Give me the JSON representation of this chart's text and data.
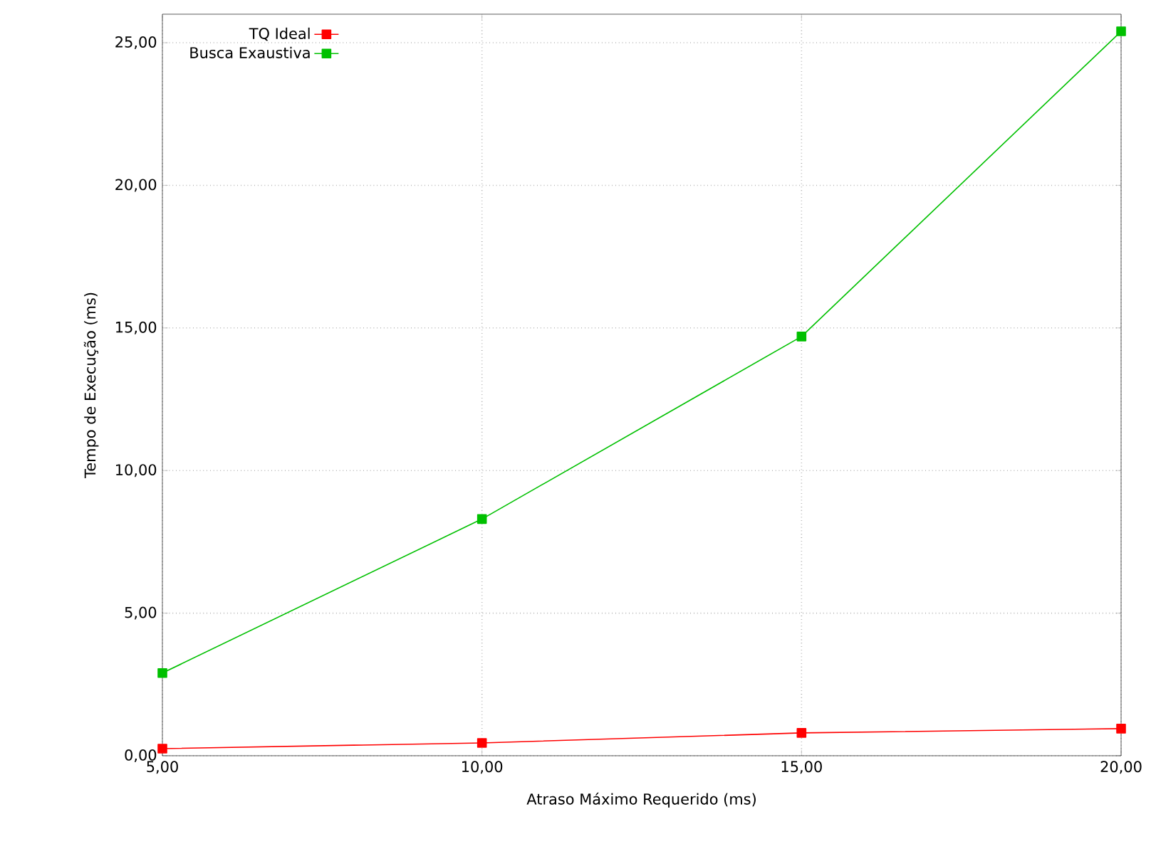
{
  "chart_data": {
    "type": "line",
    "xlabel": "Atraso Máximo Requerido (ms)",
    "ylabel": "Tempo de Execução (ms)",
    "x": [
      5,
      10,
      15,
      20
    ],
    "series": [
      {
        "name": "TQ Ideal",
        "color": "#ff0000",
        "values": [
          0.25,
          0.45,
          0.8,
          0.95
        ]
      },
      {
        "name": "Busca Exaustiva",
        "color": "#00c000",
        "values": [
          2.9,
          8.3,
          14.7,
          25.4
        ]
      }
    ],
    "xlim": [
      5,
      20
    ],
    "ylim": [
      0,
      26
    ],
    "xticks": [
      {
        "value": 5,
        "label": "5,00"
      },
      {
        "value": 10,
        "label": "10,00"
      },
      {
        "value": 15,
        "label": "15,00"
      },
      {
        "value": 20,
        "label": "20,00"
      }
    ],
    "yticks": [
      {
        "value": 0,
        "label": "0,00"
      },
      {
        "value": 5,
        "label": "5,00"
      },
      {
        "value": 10,
        "label": "10,00"
      },
      {
        "value": 15,
        "label": "15,00"
      },
      {
        "value": 20,
        "label": "20,00"
      },
      {
        "value": 25,
        "label": "25,00"
      }
    ],
    "grid": true,
    "legend": "top left",
    "marker": "square",
    "line_style": "solid"
  }
}
